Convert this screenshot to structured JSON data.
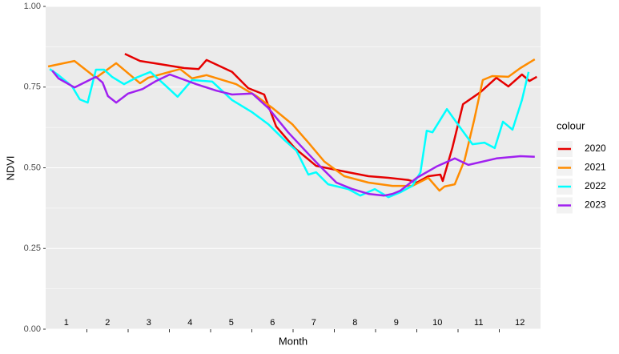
{
  "chart_data": {
    "type": "line",
    "x_label": "Month",
    "y_label": "NDVI",
    "legend_title": "colour",
    "legend_position": "right",
    "xlim": [
      0.5,
      12.5
    ],
    "xticks": [
      1.5,
      2.5,
      3.5,
      4.5,
      5.5,
      6.5,
      7.5,
      8.5,
      9.5,
      10.5,
      11.5
    ],
    "month_labels": [
      1,
      2,
      3,
      4,
      5,
      6,
      7,
      8,
      9,
      10,
      11,
      12
    ],
    "ylim": [
      0,
      1
    ],
    "yticks": [
      {
        "value": 0,
        "label": "0.00"
      },
      {
        "value": 0.25,
        "label": "0.25"
      },
      {
        "value": 0.5,
        "label": "0.50"
      },
      {
        "value": 0.75,
        "label": "0.75"
      },
      {
        "value": 1,
        "label": "1.00"
      }
    ],
    "grid": true,
    "series": [
      {
        "name": "2020",
        "color": "#e60000",
        "x": [
          2.42,
          2.79,
          3.28,
          3.86,
          4.21,
          4.4,
          5.02,
          5.41,
          5.8,
          6.09,
          6.54,
          7.06,
          7.84,
          8.33,
          8.81,
          9.3,
          9.5,
          9.78,
          10.07,
          10.13,
          10.36,
          10.62,
          11.04,
          11.43,
          11.72,
          12.05,
          12.23,
          12.41
        ],
        "values": [
          0.853,
          0.831,
          0.821,
          0.809,
          0.806,
          0.834,
          0.797,
          0.747,
          0.727,
          0.628,
          0.561,
          0.506,
          0.486,
          0.474,
          0.469,
          0.462,
          0.454,
          0.474,
          0.479,
          0.459,
          0.561,
          0.697,
          0.734,
          0.779,
          0.752,
          0.789,
          0.769,
          0.782
        ]
      },
      {
        "name": "2021",
        "color": "#ff8c00",
        "x": [
          0.56,
          1.2,
          1.72,
          2.21,
          2.79,
          2.99,
          3.76,
          4.05,
          4.4,
          5.12,
          5.61,
          6.0,
          6.48,
          6.87,
          7.26,
          7.74,
          8.33,
          8.91,
          9.39,
          9.78,
          10.05,
          10.17,
          10.42,
          10.66,
          10.89,
          11.1,
          11.33,
          11.72,
          12.01,
          12.36
        ],
        "values": [
          0.814,
          0.831,
          0.779,
          0.824,
          0.762,
          0.779,
          0.806,
          0.777,
          0.787,
          0.759,
          0.722,
          0.685,
          0.635,
          0.578,
          0.519,
          0.474,
          0.454,
          0.444,
          0.444,
          0.469,
          0.429,
          0.442,
          0.449,
          0.524,
          0.648,
          0.772,
          0.784,
          0.782,
          0.809,
          0.836
        ]
      },
      {
        "name": "2022",
        "color": "#00ffff",
        "x": [
          0.6,
          0.79,
          1.14,
          1.33,
          1.52,
          1.72,
          1.92,
          2.11,
          2.4,
          2.69,
          3.04,
          3.37,
          3.7,
          4.05,
          4.54,
          5.02,
          5.51,
          5.9,
          6.29,
          6.58,
          6.87,
          7.06,
          7.35,
          7.84,
          8.13,
          8.48,
          8.81,
          9.1,
          9.39,
          9.59,
          9.74,
          9.88,
          10.23,
          10.56,
          10.85,
          11.14,
          11.39,
          11.59,
          11.82,
          12.05,
          12.21
        ],
        "values": [
          0.806,
          0.789,
          0.752,
          0.712,
          0.702,
          0.804,
          0.804,
          0.782,
          0.759,
          0.779,
          0.797,
          0.759,
          0.72,
          0.772,
          0.767,
          0.71,
          0.672,
          0.635,
          0.586,
          0.553,
          0.479,
          0.486,
          0.449,
          0.434,
          0.414,
          0.434,
          0.409,
          0.424,
          0.444,
          0.486,
          0.615,
          0.61,
          0.682,
          0.623,
          0.573,
          0.578,
          0.561,
          0.643,
          0.618,
          0.71,
          0.797
        ]
      },
      {
        "name": "2023",
        "color": "#a020f0",
        "x": [
          0.66,
          0.81,
          1.2,
          1.72,
          1.88,
          2.01,
          2.21,
          2.5,
          2.85,
          3.18,
          3.51,
          4.15,
          4.64,
          5.02,
          5.51,
          5.9,
          6.38,
          6.87,
          7.16,
          7.55,
          7.94,
          8.33,
          8.71,
          8.91,
          9.1,
          9.5,
          9.98,
          10.42,
          10.75,
          11.43,
          12.01,
          12.36
        ],
        "values": [
          0.801,
          0.777,
          0.749,
          0.782,
          0.764,
          0.722,
          0.702,
          0.73,
          0.744,
          0.769,
          0.789,
          0.759,
          0.739,
          0.727,
          0.73,
          0.685,
          0.61,
          0.543,
          0.504,
          0.454,
          0.434,
          0.419,
          0.414,
          0.419,
          0.429,
          0.469,
          0.504,
          0.529,
          0.509,
          0.529,
          0.536,
          0.534
        ]
      }
    ]
  }
}
